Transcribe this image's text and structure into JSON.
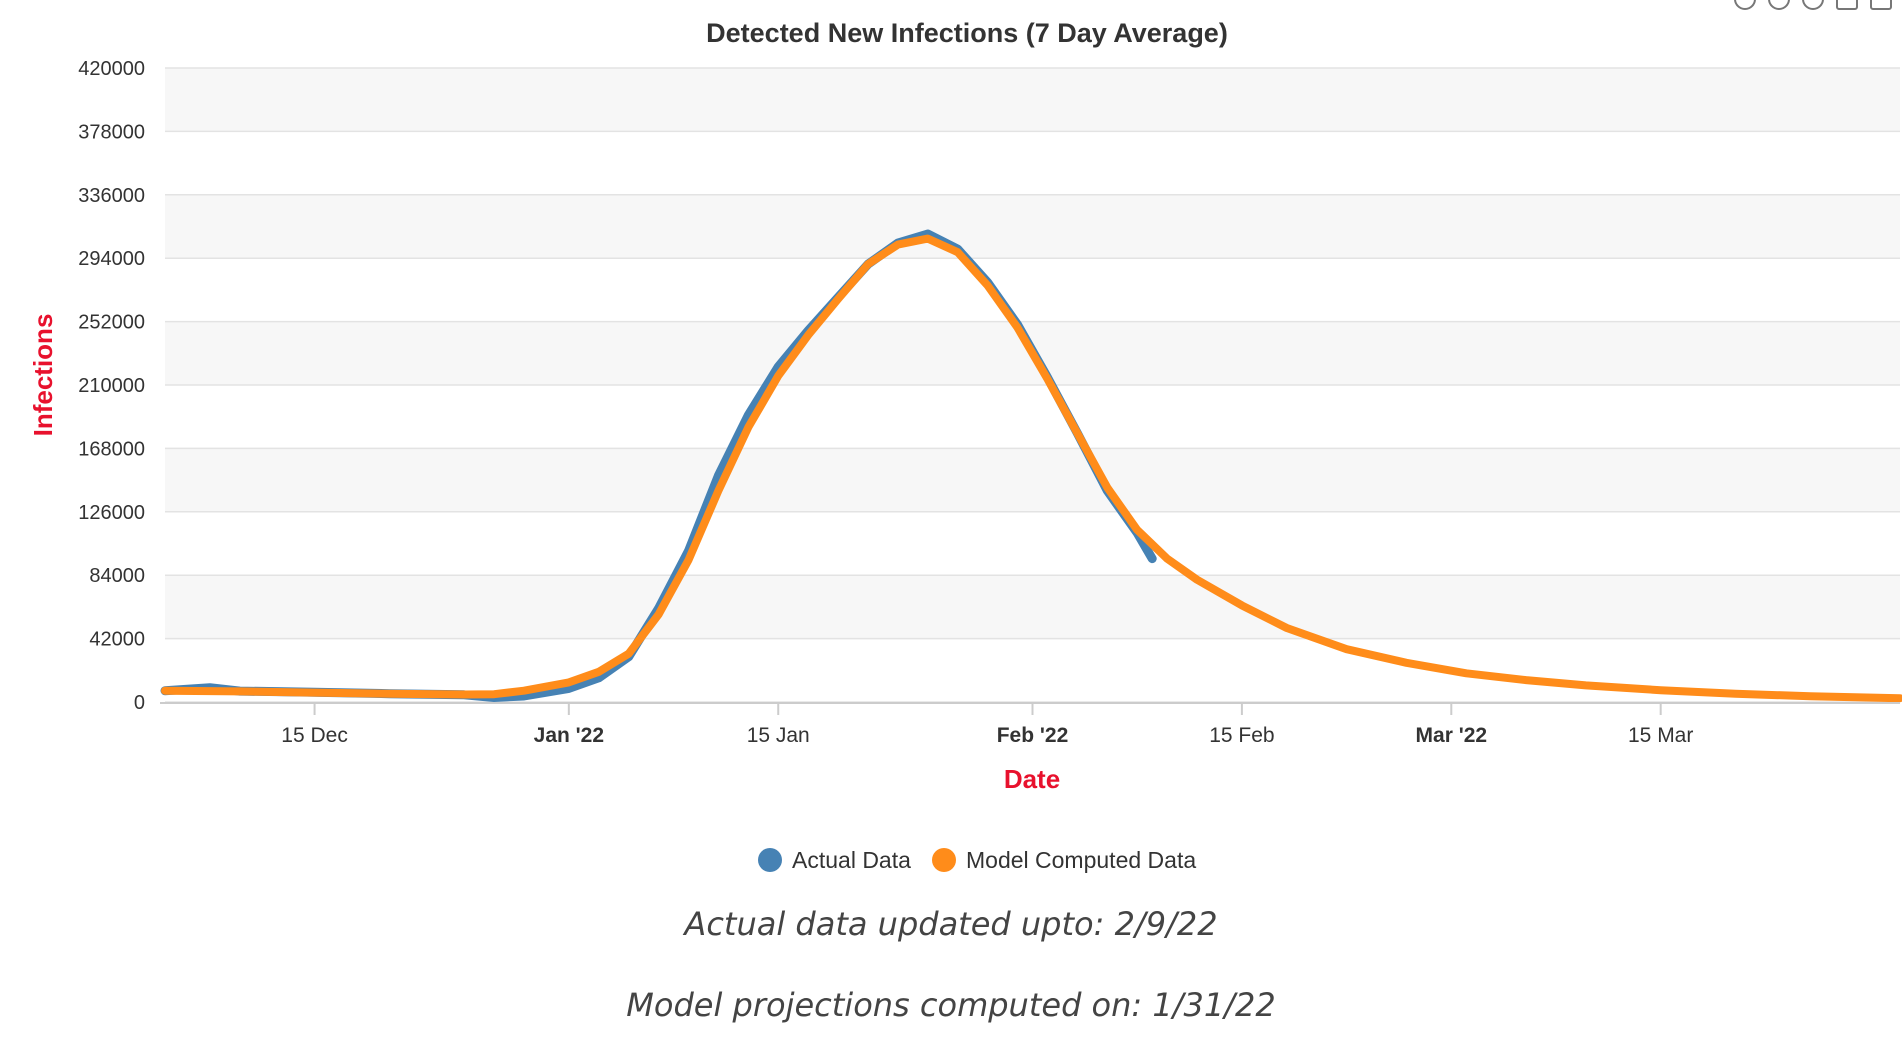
{
  "chart_data": {
    "type": "line",
    "title": "Detected New Infections (7 Day Average)",
    "xlabel": "Date",
    "ylabel": "Infections",
    "ylim": [
      0,
      420000
    ],
    "yticks": [
      "0",
      "42000",
      "84000",
      "126000",
      "168000",
      "210000",
      "252000",
      "294000",
      "336000",
      "378000",
      "420000"
    ],
    "xlim": [
      "2021-12-05",
      "2022-03-31"
    ],
    "xticks": [
      {
        "date": "2021-12-15",
        "label": "15 Dec",
        "bold": false
      },
      {
        "date": "2022-01-01",
        "label": "Jan '22",
        "bold": true
      },
      {
        "date": "2022-01-15",
        "label": "15 Jan",
        "bold": false
      },
      {
        "date": "2022-02-01",
        "label": "Feb '22",
        "bold": true
      },
      {
        "date": "2022-02-15",
        "label": "15 Feb",
        "bold": false
      },
      {
        "date": "2022-03-01",
        "label": "Mar '22",
        "bold": true
      },
      {
        "date": "2022-03-15",
        "label": "15 Mar",
        "bold": false
      }
    ],
    "grid": true,
    "legend_position": "bottom-center",
    "series": [
      {
        "name": "Actual Data",
        "color": "#4682b4",
        "points": [
          [
            "2021-12-05",
            7500
          ],
          [
            "2021-12-08",
            9500
          ],
          [
            "2021-12-10",
            7200
          ],
          [
            "2021-12-15",
            6500
          ],
          [
            "2021-12-20",
            5500
          ],
          [
            "2021-12-25",
            4800
          ],
          [
            "2021-12-27",
            3000
          ],
          [
            "2021-12-29",
            4000
          ],
          [
            "2022-01-01",
            9000
          ],
          [
            "2022-01-03",
            16000
          ],
          [
            "2022-01-05",
            30000
          ],
          [
            "2022-01-07",
            62000
          ],
          [
            "2022-01-09",
            100000
          ],
          [
            "2022-01-11",
            150000
          ],
          [
            "2022-01-13",
            190000
          ],
          [
            "2022-01-15",
            222000
          ],
          [
            "2022-01-17",
            246000
          ],
          [
            "2022-01-19",
            268000
          ],
          [
            "2022-01-21",
            290000
          ],
          [
            "2022-01-23",
            304000
          ],
          [
            "2022-01-25",
            310000
          ],
          [
            "2022-01-27",
            300000
          ],
          [
            "2022-01-29",
            278000
          ],
          [
            "2022-01-31",
            250000
          ],
          [
            "2022-02-02",
            215000
          ],
          [
            "2022-02-04",
            178000
          ],
          [
            "2022-02-06",
            140000
          ],
          [
            "2022-02-08",
            112000
          ],
          [
            "2022-02-09",
            95000
          ]
        ]
      },
      {
        "name": "Model Computed Data",
        "color": "#ff8c1a",
        "points": [
          [
            "2021-12-05",
            7500
          ],
          [
            "2021-12-10",
            7000
          ],
          [
            "2021-12-15",
            6200
          ],
          [
            "2021-12-20",
            5500
          ],
          [
            "2021-12-25",
            5000
          ],
          [
            "2021-12-27",
            5200
          ],
          [
            "2021-12-29",
            7500
          ],
          [
            "2022-01-01",
            13000
          ],
          [
            "2022-01-03",
            20000
          ],
          [
            "2022-01-05",
            32000
          ],
          [
            "2022-01-07",
            58000
          ],
          [
            "2022-01-09",
            94000
          ],
          [
            "2022-01-11",
            140000
          ],
          [
            "2022-01-13",
            182000
          ],
          [
            "2022-01-15",
            216000
          ],
          [
            "2022-01-17",
            243000
          ],
          [
            "2022-01-19",
            267000
          ],
          [
            "2022-01-21",
            290000
          ],
          [
            "2022-01-23",
            303000
          ],
          [
            "2022-01-25",
            307000
          ],
          [
            "2022-01-27",
            298000
          ],
          [
            "2022-01-29",
            276000
          ],
          [
            "2022-01-31",
            248000
          ],
          [
            "2022-02-02",
            214000
          ],
          [
            "2022-02-04",
            178000
          ],
          [
            "2022-02-06",
            142000
          ],
          [
            "2022-02-08",
            114000
          ],
          [
            "2022-02-10",
            95000
          ],
          [
            "2022-02-12",
            81000
          ],
          [
            "2022-02-15",
            64000
          ],
          [
            "2022-02-18",
            49000
          ],
          [
            "2022-02-22",
            35000
          ],
          [
            "2022-02-26",
            26000
          ],
          [
            "2022-03-02",
            19000
          ],
          [
            "2022-03-06",
            14500
          ],
          [
            "2022-03-10",
            11000
          ],
          [
            "2022-03-15",
            7800
          ],
          [
            "2022-03-20",
            5500
          ],
          [
            "2022-03-25",
            3800
          ],
          [
            "2022-03-31",
            2500
          ]
        ]
      }
    ]
  },
  "notes": {
    "actual_updated": "Actual data updated upto: 2/9/22",
    "model_computed": "Model projections computed on: 1/31/22"
  }
}
